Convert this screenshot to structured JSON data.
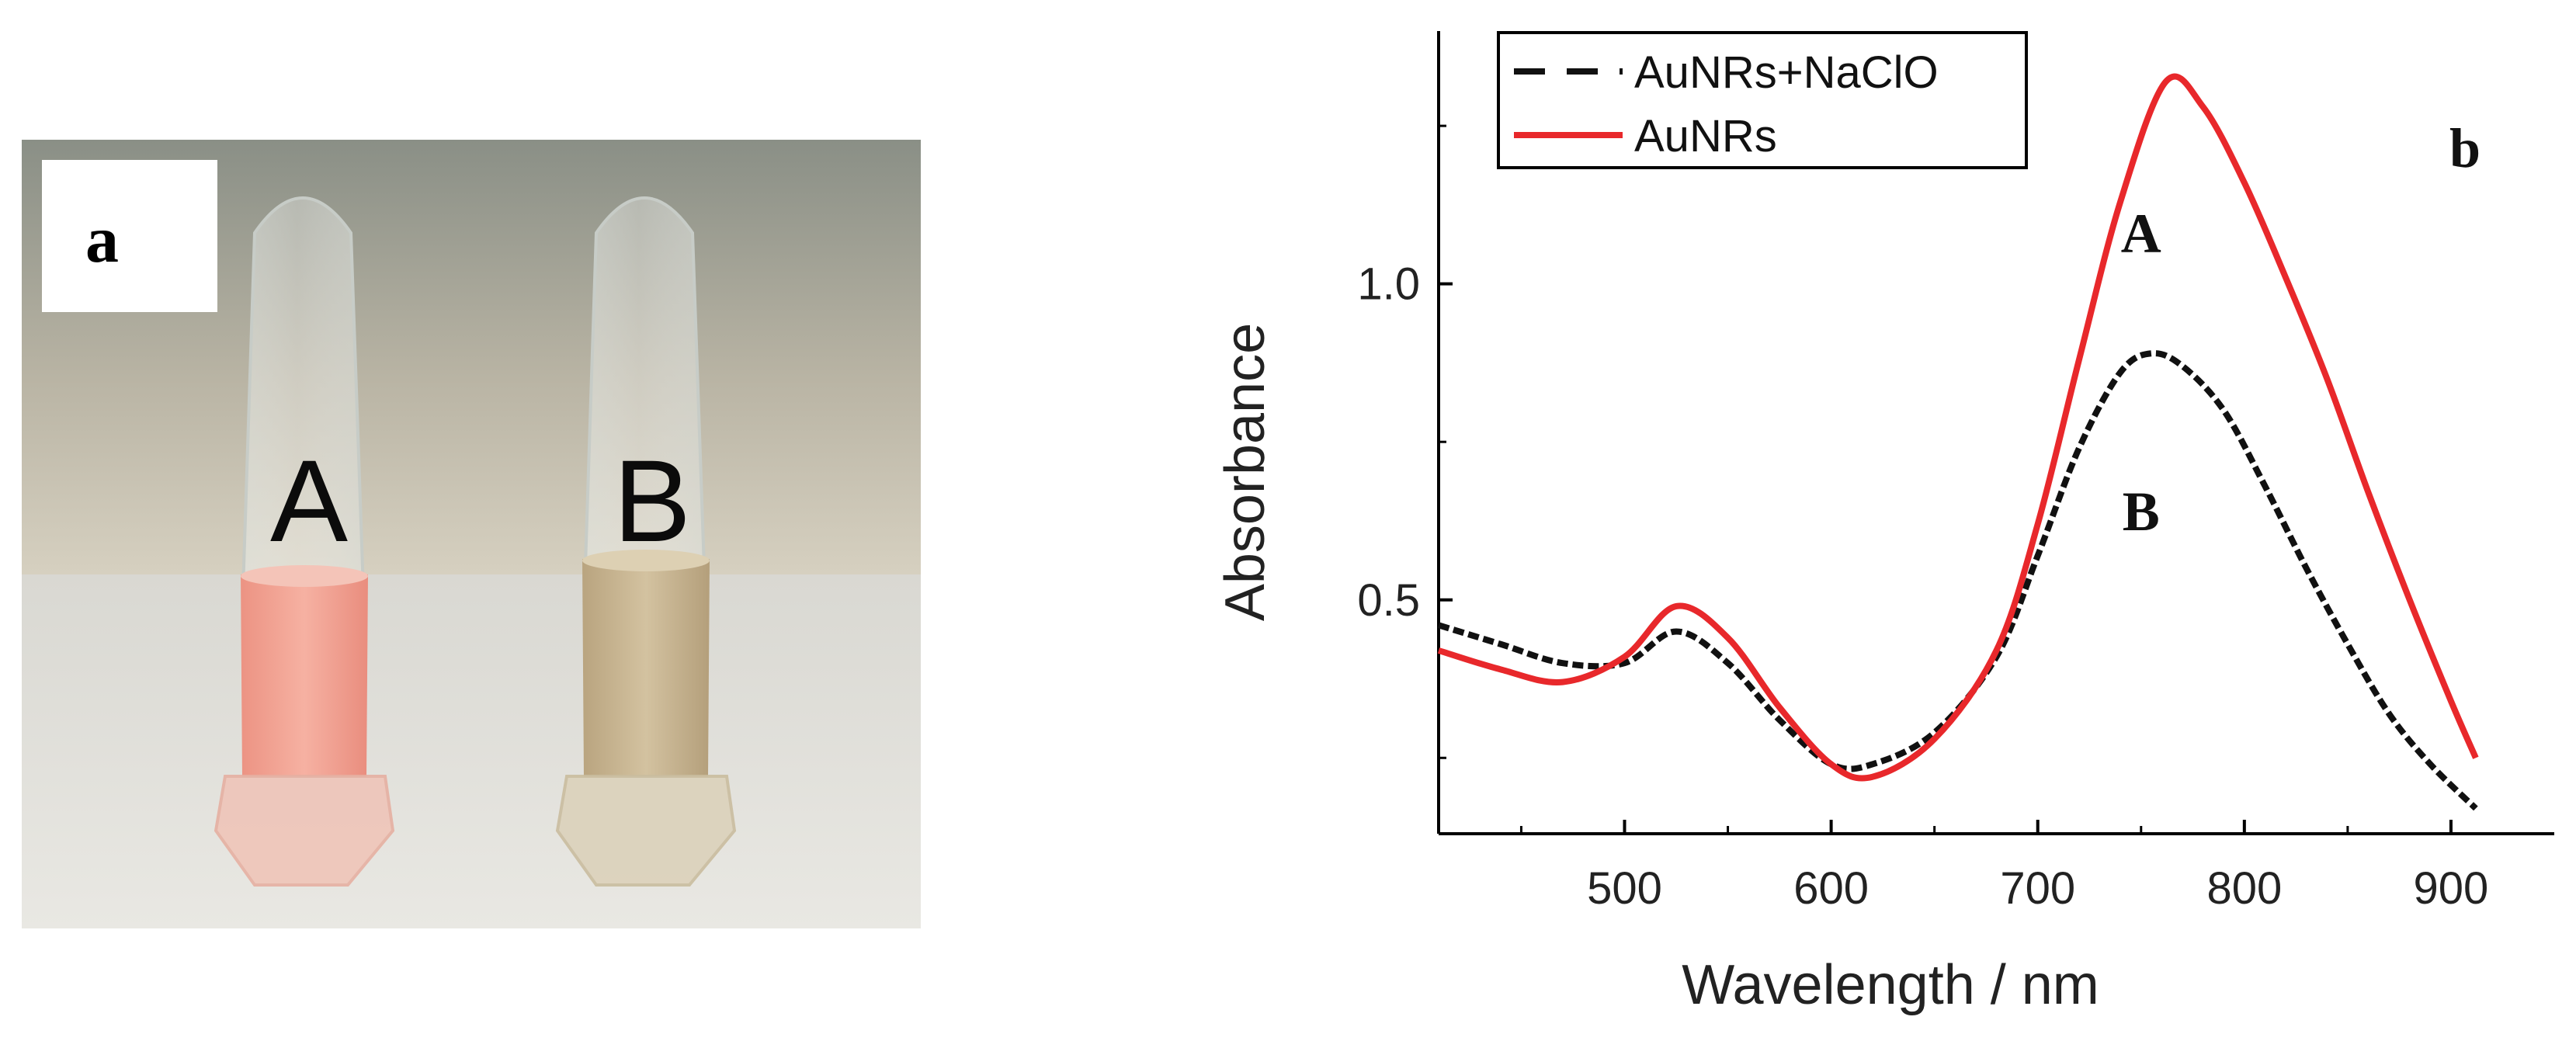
{
  "panel_a": {
    "panel_label": "a",
    "tube_labels": [
      "A",
      "B"
    ],
    "tube_colors": [
      "#f2a493",
      "#c9b594"
    ]
  },
  "panel_b_label": "b",
  "chart_data": {
    "type": "line",
    "title": "",
    "xlabel": "Wavelength / nm",
    "ylabel": "Absorbance",
    "xlim": [
      410,
      950
    ],
    "ylim": [
      0.13,
      1.4
    ],
    "xticks": [
      500,
      600,
      700,
      800,
      900
    ],
    "yticks": [
      0.5,
      1.0
    ],
    "xtick_labels": [
      "500",
      "600",
      "700",
      "800",
      "900"
    ],
    "ytick_labels": [
      "0.5",
      "1.0"
    ],
    "legend_position": "top-left",
    "grid": false,
    "series": [
      {
        "name": "AuNRs+NaClO",
        "color": "#111111",
        "style": "dashed",
        "label": "B",
        "x": [
          410,
          440,
          470,
          500,
          525,
          550,
          575,
          600,
          620,
          650,
          680,
          700,
          720,
          740,
          755,
          770,
          790,
          810,
          830,
          850,
          870,
          890,
          912
        ],
        "y": [
          0.46,
          0.43,
          0.4,
          0.4,
          0.45,
          0.4,
          0.31,
          0.24,
          0.24,
          0.29,
          0.41,
          0.57,
          0.74,
          0.86,
          0.89,
          0.87,
          0.8,
          0.68,
          0.55,
          0.43,
          0.32,
          0.24,
          0.17
        ]
      },
      {
        "name": "AuNRs",
        "color": "#e8282b",
        "style": "solid",
        "label": "A",
        "x": [
          410,
          440,
          470,
          500,
          525,
          550,
          575,
          600,
          620,
          650,
          680,
          700,
          720,
          740,
          762,
          780,
          800,
          820,
          840,
          860,
          880,
          900,
          912
        ],
        "y": [
          0.42,
          0.39,
          0.37,
          0.41,
          0.49,
          0.44,
          0.33,
          0.24,
          0.22,
          0.28,
          0.42,
          0.62,
          0.88,
          1.13,
          1.32,
          1.28,
          1.16,
          1.01,
          0.85,
          0.67,
          0.5,
          0.34,
          0.25
        ]
      }
    ]
  }
}
